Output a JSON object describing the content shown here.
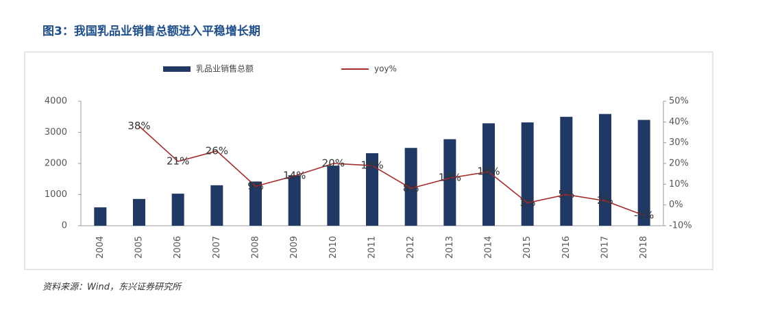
{
  "chart_data": {
    "type": "bar_line",
    "title": "图3：我国乳品业销售总额进入平稳增长期",
    "source": "资料来源：Wind，东兴证券研究所",
    "categories": [
      "2004",
      "2005",
      "2006",
      "2007",
      "2008",
      "2009",
      "2010",
      "2011",
      "2012",
      "2013",
      "2014",
      "2015",
      "2016",
      "2017",
      "2018"
    ],
    "series": [
      {
        "name": "乳品业销售总额",
        "color": "#1f3864",
        "type": "bar",
        "values": [
          590,
          860,
          1030,
          1300,
          1420,
          1620,
          1930,
          2330,
          2500,
          2780,
          3290,
          3320,
          3500,
          3590,
          3400
        ]
      },
      {
        "name": "yoy%",
        "color": "#a52a2a",
        "type": "line",
        "axis": "y2",
        "values": [
          null,
          38,
          21,
          26,
          9,
          14,
          20,
          19,
          8,
          13,
          16,
          1,
          5,
          2,
          -5
        ],
        "value_labels": [
          null,
          "38%",
          "21%",
          "26%",
          "9%",
          "14%",
          "20%",
          "19%",
          "8%",
          "13%",
          "16%",
          "1%",
          "5%",
          "2%",
          "-5%"
        ]
      }
    ],
    "ylim": [
      0,
      4000
    ],
    "yticks": [
      0,
      1000,
      2000,
      3000,
      4000
    ],
    "y2lim": [
      -10,
      50
    ],
    "y2ticks": [
      {
        "value": -10,
        "label": "-10%"
      },
      {
        "value": 0,
        "label": "0%"
      },
      {
        "value": 10,
        "label": "10%"
      },
      {
        "value": 20,
        "label": "20%"
      },
      {
        "value": 30,
        "label": "30%"
      },
      {
        "value": 40,
        "label": "40%"
      },
      {
        "value": 50,
        "label": "50%"
      }
    ]
  }
}
